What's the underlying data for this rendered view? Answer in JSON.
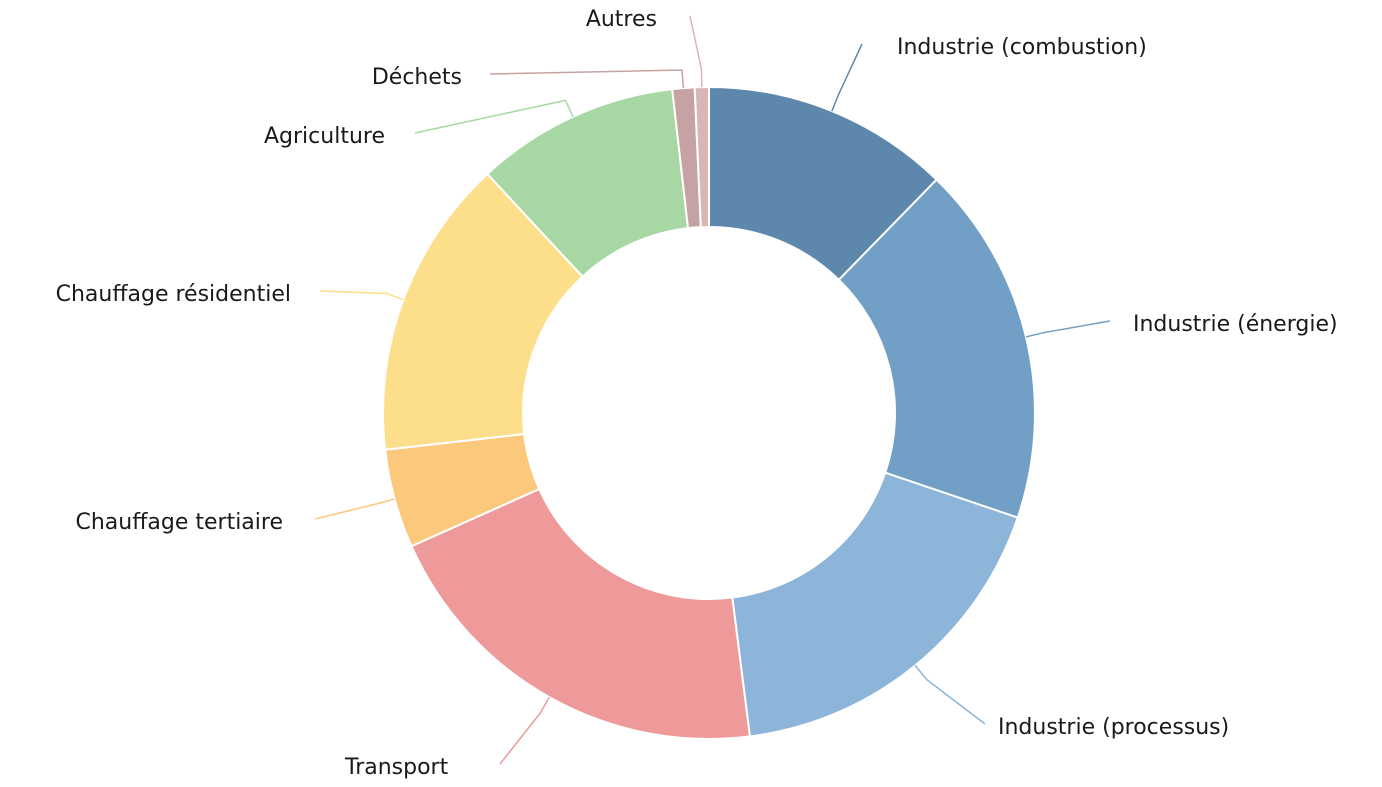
{
  "chart_data": {
    "type": "donut",
    "categories": [
      "Industrie (combustion)",
      "Industrie (énergie)",
      "Industrie (processus)",
      "Transport",
      "Chauffage tertiaire",
      "Chauffage résidentiel",
      "Agriculture",
      "Déchets",
      "Autres"
    ],
    "values": [
      12.3,
      17.9,
      17.8,
      20.3,
      4.9,
      14.9,
      10.1,
      1.1,
      0.7
    ],
    "colors": [
      "#5d88ab",
      "#729fc5",
      "#8db5da",
      "#ee9a9a",
      "#fcc87c",
      "#fddf8b",
      "#a7d7a2",
      "#c6a2a2",
      "#d8b6b6"
    ]
  }
}
